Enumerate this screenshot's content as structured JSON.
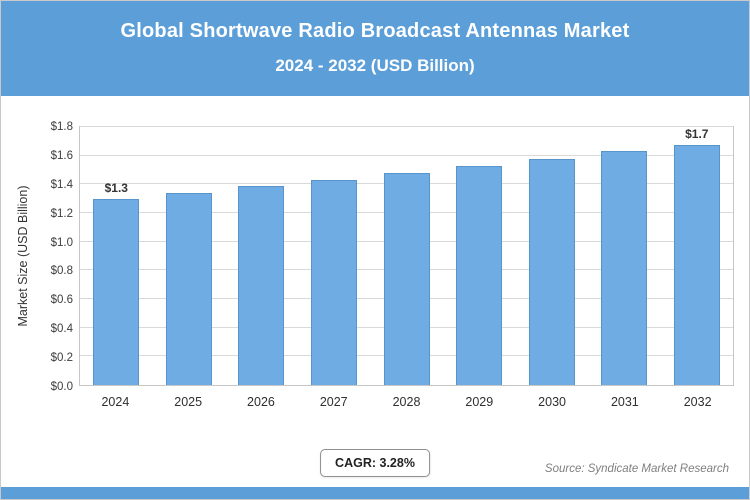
{
  "header": {
    "title": "Global Shortwave Radio Broadcast Antennas Market",
    "subtitle": "2024 - 2032 (USD Billion)"
  },
  "chart_data": {
    "type": "bar",
    "title": "Global Shortwave Radio Broadcast Antennas Market",
    "subtitle": "2024 - 2032 (USD Billion)",
    "categories": [
      "2024",
      "2025",
      "2026",
      "2027",
      "2028",
      "2029",
      "2030",
      "2031",
      "2032"
    ],
    "values": [
      1.3,
      1.34,
      1.39,
      1.43,
      1.48,
      1.53,
      1.58,
      1.63,
      1.7
    ],
    "bar_value_labels": [
      "$1.3",
      "",
      "",
      "",
      "",
      "",
      "",
      "",
      "$1.7"
    ],
    "ylabel": "Market Size (USD Billion)",
    "xlabel": "",
    "ylim": [
      0,
      1.8
    ],
    "ytick_labels": [
      "$0.0",
      "$0.2",
      "$0.4",
      "$0.6",
      "$0.8",
      "$1.0",
      "$1.2",
      "$1.4",
      "$1.6",
      "$1.8"
    ],
    "grid": true,
    "legend": false,
    "bar_color": "#6FACE3",
    "bar_border_color": "#5894CC",
    "banner_color": "#5C9FD8",
    "gridline_color": "#d9d9d9"
  },
  "footer": {
    "cagr_label": "CAGR: 3.28%",
    "source": "Source: Syndicate Market Research"
  }
}
